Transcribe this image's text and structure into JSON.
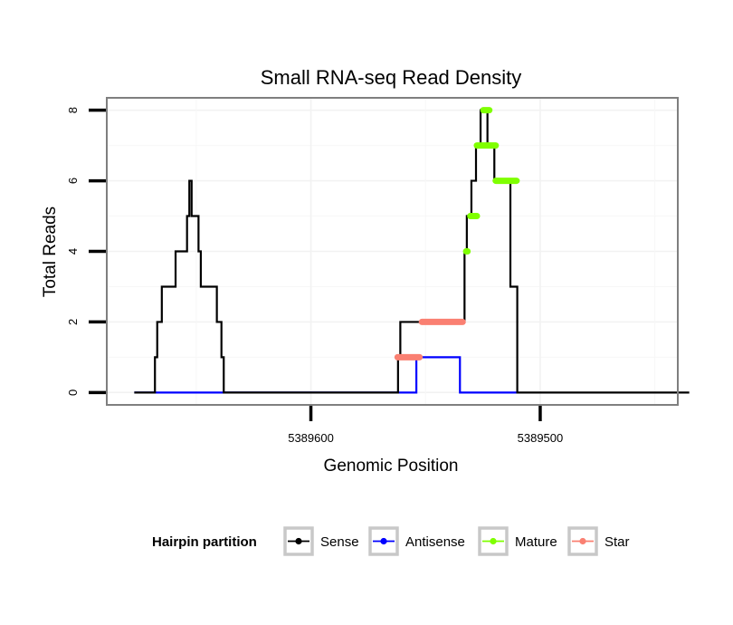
{
  "chart_data": {
    "type": "line",
    "title": "Small RNA-seq Read Density",
    "xlabel": "Genomic Position",
    "ylabel": "Total Reads",
    "x_reversed": true,
    "xlim": [
      5389689,
      5389440
    ],
    "ylim": [
      -0.35,
      8.35
    ],
    "x_ticks": [
      {
        "value": 5389600,
        "label": "5389600"
      },
      {
        "value": 5389500,
        "label": "5389500"
      }
    ],
    "y_ticks": [
      {
        "value": 0,
        "label": "0"
      },
      {
        "value": 2,
        "label": "2"
      },
      {
        "value": 4,
        "label": "4"
      },
      {
        "value": 6,
        "label": "6"
      },
      {
        "value": 8,
        "label": "8"
      }
    ],
    "legend": {
      "title": "Hairpin partition",
      "position": "bottom",
      "entries": [
        {
          "name": "Sense",
          "color": "#000000"
        },
        {
          "name": "Antisense",
          "color": "#0000ff"
        },
        {
          "name": "Mature",
          "color": "#7fff00"
        },
        {
          "name": "Star",
          "color": "#fa8072"
        }
      ]
    },
    "series": [
      {
        "name": "Sense",
        "kind": "line",
        "color": "#000000",
        "points": [
          [
            5389677,
            0
          ],
          [
            5389668,
            0
          ],
          [
            5389668,
            1
          ],
          [
            5389667,
            1
          ],
          [
            5389667,
            2
          ],
          [
            5389665,
            2
          ],
          [
            5389665,
            3
          ],
          [
            5389659,
            3
          ],
          [
            5389659,
            4
          ],
          [
            5389654,
            4
          ],
          [
            5389654,
            5
          ],
          [
            5389653,
            5
          ],
          [
            5389653,
            6
          ],
          [
            5389652,
            6
          ],
          [
            5389652,
            5
          ],
          [
            5389649,
            5
          ],
          [
            5389649,
            4
          ],
          [
            5389648,
            4
          ],
          [
            5389648,
            3
          ],
          [
            5389641,
            3
          ],
          [
            5389641,
            2
          ],
          [
            5389639,
            2
          ],
          [
            5389639,
            1
          ],
          [
            5389638,
            1
          ],
          [
            5389638,
            0
          ],
          [
            5389562,
            0
          ],
          [
            5389562,
            1
          ],
          [
            5389561,
            1
          ],
          [
            5389561,
            2
          ],
          [
            5389551,
            2
          ],
          [
            5389551,
            2
          ],
          [
            5389533,
            2
          ],
          [
            5389533,
            4
          ],
          [
            5389532,
            4
          ],
          [
            5389532,
            5
          ],
          [
            5389530,
            5
          ],
          [
            5389530,
            6
          ],
          [
            5389528,
            6
          ],
          [
            5389528,
            7
          ],
          [
            5389526,
            7
          ],
          [
            5389526,
            8
          ],
          [
            5389523,
            8
          ],
          [
            5389523,
            7
          ],
          [
            5389520,
            7
          ],
          [
            5389520,
            6
          ],
          [
            5389513,
            6
          ],
          [
            5389513,
            3
          ],
          [
            5389510,
            3
          ],
          [
            5389510,
            0
          ],
          [
            5389435,
            0
          ]
        ]
      },
      {
        "name": "Antisense",
        "kind": "line",
        "color": "#0000ff",
        "points": [
          [
            5389677,
            0
          ],
          [
            5389554,
            0
          ],
          [
            5389554,
            1
          ],
          [
            5389535,
            1
          ],
          [
            5389535,
            0
          ],
          [
            5389510,
            0
          ]
        ]
      },
      {
        "name": "Mature",
        "kind": "segments",
        "color": "#7fff00",
        "segments": [
          {
            "x0": 5389532.3,
            "x1": 5389531.7,
            "y": 4
          },
          {
            "x0": 5389530.5,
            "x1": 5389527.6,
            "y": 5
          },
          {
            "x0": 5389524.8,
            "x1": 5389522.2,
            "y": 8
          },
          {
            "x0": 5389527.6,
            "x1": 5389519.4,
            "y": 7
          },
          {
            "x0": 5389519.4,
            "x1": 5389510.3,
            "y": 6
          }
        ]
      },
      {
        "name": "Star",
        "kind": "segments",
        "color": "#fa8072",
        "segments": [
          {
            "x0": 5389562.2,
            "x1": 5389552.6,
            "y": 1
          },
          {
            "x0": 5389551.6,
            "x1": 5389533.8,
            "y": 2
          }
        ]
      }
    ]
  }
}
